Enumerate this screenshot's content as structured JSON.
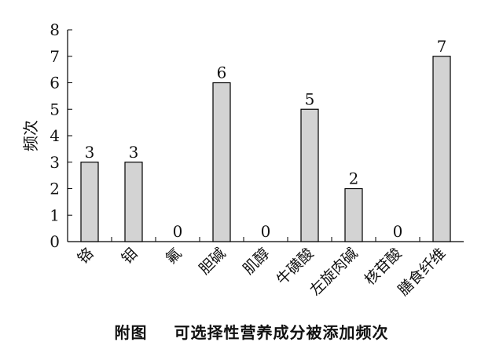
{
  "caption": {
    "prefix": "附图",
    "text": "可选择性营养成分被添加频次"
  },
  "chart_data": {
    "type": "bar",
    "categories": [
      "铬",
      "钼",
      "氟",
      "胆碱",
      "肌醇",
      "牛磺酸",
      "左旋肉碱",
      "核苷酸",
      "膳食纤维"
    ],
    "values": [
      3,
      3,
      0,
      6,
      0,
      5,
      2,
      0,
      7
    ],
    "ylabel": "频次",
    "ylim": [
      0,
      8
    ],
    "yticks": [
      0,
      1,
      2,
      3,
      4,
      5,
      6,
      7,
      8
    ],
    "grid": false,
    "bar_color": "#d3d3d3",
    "bar_stroke": "#000000"
  }
}
